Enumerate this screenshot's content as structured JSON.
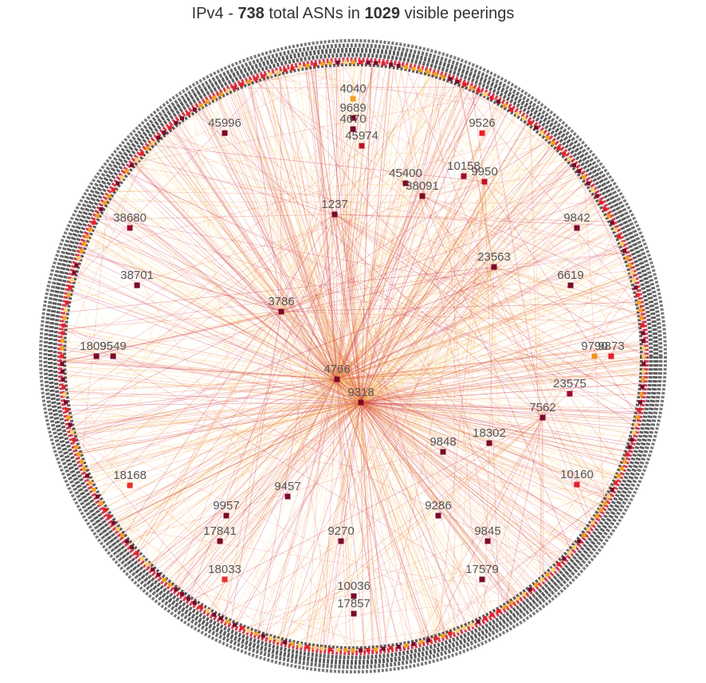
{
  "title": {
    "prefix": "IPv4 -",
    "asn_count": 738,
    "middle": "total ASNs in",
    "peering_count": 1029,
    "suffix": "visible peerings"
  },
  "nodes": [
    {
      "label": "4040",
      "color": "#f5a020"
    },
    {
      "label": "9689",
      "color": "#7a0a2a"
    },
    {
      "label": "4670",
      "color": "#7a0a2a"
    },
    {
      "label": "45974",
      "color": "#c0102a"
    },
    {
      "label": "45996",
      "color": "#7a0a2a"
    },
    {
      "label": "9526",
      "color": "#e8202a"
    },
    {
      "label": "45400",
      "color": "#7a0a2a"
    },
    {
      "label": "10158",
      "color": "#a00a2a"
    },
    {
      "label": "9950",
      "color": "#c0102a"
    },
    {
      "label": "38091",
      "color": "#7a0a2a"
    },
    {
      "label": "1237",
      "color": "#7a0a2a"
    },
    {
      "label": "38680",
      "color": "#a00a2a"
    },
    {
      "label": "9842",
      "color": "#7a0a2a"
    },
    {
      "label": "23563",
      "color": "#7a0a2a"
    },
    {
      "label": "38701",
      "color": "#7a0a2a"
    },
    {
      "label": "6619",
      "color": "#7a0a2a"
    },
    {
      "label": "3786",
      "color": "#7a0a2a"
    },
    {
      "label": "18095",
      "color": "#7a0a2a"
    },
    {
      "label": "9549",
      "color": "#7a0a2a"
    },
    {
      "label": "9790",
      "color": "#f59020"
    },
    {
      "label": "9873",
      "color": "#e8202a"
    },
    {
      "label": "4766",
      "color": "#7a0a2a"
    },
    {
      "label": "9318",
      "color": "#7a0a2a"
    },
    {
      "label": "23575",
      "color": "#a00a2a"
    },
    {
      "label": "7562",
      "color": "#7a0a2a"
    },
    {
      "label": "9848",
      "color": "#7a0a2a"
    },
    {
      "label": "18302",
      "color": "#7a0a2a"
    },
    {
      "label": "18168",
      "color": "#e8302a"
    },
    {
      "label": "10160",
      "color": "#e8202a"
    },
    {
      "label": "9457",
      "color": "#7a0a2a"
    },
    {
      "label": "9957",
      "color": "#7a0a2a"
    },
    {
      "label": "9286",
      "color": "#7a0a2a"
    },
    {
      "label": "17841",
      "color": "#7a0a2a"
    },
    {
      "label": "9270",
      "color": "#7a0a2a"
    },
    {
      "label": "9845",
      "color": "#7a0a2a"
    },
    {
      "label": "18033",
      "color": "#e8302a"
    },
    {
      "label": "17579",
      "color": "#7a0a2a"
    },
    {
      "label": "10036",
      "color": "#7a0a2a"
    },
    {
      "label": "17857",
      "color": "#7a0a2a"
    }
  ]
}
